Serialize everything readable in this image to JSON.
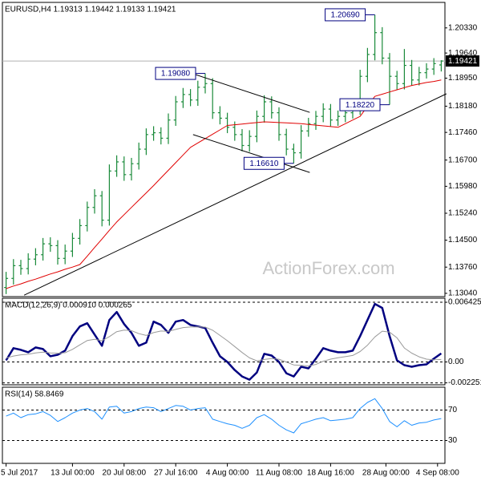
{
  "chart_data": [
    {
      "type": "ohlc",
      "title": "EURUSD,H4  1.19313 1.19442 1.19133 1.19421",
      "watermark": "ActionForex.com",
      "color": "#1a8a3a",
      "xlim": [
        -0.5,
        59.5
      ],
      "xticks": [
        {
          "value": 0,
          "label": "5 Jul 2017"
        },
        {
          "value": 9,
          "label": "13 Jul 00:00"
        },
        {
          "value": 16,
          "label": "20 Jul 08:00"
        },
        {
          "value": 23,
          "label": "27 Jul 16:00"
        },
        {
          "value": 30,
          "label": "4 Aug 00:00"
        },
        {
          "value": 37,
          "label": "11 Aug 08:00"
        },
        {
          "value": 44,
          "label": "18 Aug 16:00"
        },
        {
          "value": 51.5,
          "label": "28 Aug 00:00"
        },
        {
          "value": 58.5,
          "label": "4 Sep 08:00"
        }
      ],
      "ylim": [
        1.1295,
        1.2103
      ],
      "yticks": [
        {
          "value": 1.2033,
          "label": "1.20330"
        },
        {
          "value": 1.1964,
          "label": "1.19640"
        },
        {
          "value": 1.1895,
          "label": "1.18950"
        },
        {
          "value": 1.1818,
          "label": "1.18180"
        },
        {
          "value": 1.1746,
          "label": "1.17460"
        },
        {
          "value": 1.167,
          "label": "1.16700"
        },
        {
          "value": 1.1598,
          "label": "1.15980"
        },
        {
          "value": 1.1524,
          "label": "1.15240"
        },
        {
          "value": 1.145,
          "label": "1.14500"
        },
        {
          "value": 1.1376,
          "label": "1.13760"
        },
        {
          "value": 1.1304,
          "label": "1.13040"
        }
      ],
      "grid": false,
      "open": [
        1.132,
        1.1345,
        1.138,
        1.1372,
        1.1398,
        1.141,
        1.144,
        1.1435,
        1.14,
        1.142,
        1.1455,
        1.149,
        1.154,
        1.1572,
        1.1505,
        1.164,
        1.1665,
        1.163,
        1.166,
        1.17,
        1.174,
        1.1745,
        1.173,
        1.178,
        1.183,
        1.185,
        1.1835,
        1.187,
        1.188,
        1.18,
        1.1785,
        1.176,
        1.174,
        1.171,
        1.1735,
        1.179,
        1.183,
        1.18,
        1.174,
        1.17,
        1.169,
        1.175,
        1.177,
        1.179,
        1.181,
        1.178,
        1.179,
        1.18,
        1.181,
        1.19,
        1.196,
        1.202,
        1.195,
        1.19,
        1.188,
        1.193,
        1.189,
        1.191,
        1.192,
        1.19313
      ],
      "high": [
        1.1363,
        1.1398,
        1.1396,
        1.1414,
        1.1428,
        1.1456,
        1.1458,
        1.145,
        1.1438,
        1.147,
        1.1508,
        1.1556,
        1.159,
        1.1585,
        1.1658,
        1.1683,
        1.168,
        1.1676,
        1.1718,
        1.1757,
        1.1763,
        1.176,
        1.1798,
        1.1846,
        1.1868,
        1.1865,
        1.1888,
        1.1908,
        1.1895,
        1.1818,
        1.18,
        1.1776,
        1.1755,
        1.1752,
        1.1806,
        1.1848,
        1.1845,
        1.1815,
        1.1756,
        1.1715,
        1.1766,
        1.1786,
        1.1805,
        1.1826,
        1.1824,
        1.1806,
        1.1816,
        1.1826,
        1.1918,
        1.1978,
        1.2069,
        1.2035,
        1.1964,
        1.1915,
        1.1975,
        1.1945,
        1.1926,
        1.1936,
        1.195,
        1.19442
      ],
      "low": [
        1.1302,
        1.1328,
        1.1355,
        1.1356,
        1.1381,
        1.1394,
        1.1418,
        1.1383,
        1.1384,
        1.1404,
        1.1438,
        1.1474,
        1.1523,
        1.1488,
        1.149,
        1.1624,
        1.1613,
        1.1614,
        1.1644,
        1.1684,
        1.1723,
        1.1713,
        1.1714,
        1.1764,
        1.1813,
        1.1818,
        1.1819,
        1.1853,
        1.1783,
        1.1768,
        1.1744,
        1.1723,
        1.1694,
        1.1693,
        1.1719,
        1.1773,
        1.1784,
        1.1723,
        1.1683,
        1.1661,
        1.1674,
        1.1734,
        1.1753,
        1.1774,
        1.1763,
        1.1764,
        1.1774,
        1.1784,
        1.1794,
        1.1884,
        1.1944,
        1.1933,
        1.1822,
        1.1863,
        1.1864,
        1.1874,
        1.1875,
        1.1894,
        1.1904,
        1.19133
      ],
      "close": [
        1.1345,
        1.138,
        1.1372,
        1.1398,
        1.141,
        1.144,
        1.1435,
        1.14,
        1.142,
        1.1455,
        1.149,
        1.154,
        1.1572,
        1.1505,
        1.164,
        1.1665,
        1.163,
        1.166,
        1.17,
        1.174,
        1.1745,
        1.173,
        1.178,
        1.183,
        1.185,
        1.1835,
        1.187,
        1.188,
        1.18,
        1.1785,
        1.176,
        1.174,
        1.171,
        1.1735,
        1.179,
        1.183,
        1.18,
        1.174,
        1.17,
        1.169,
        1.175,
        1.177,
        1.179,
        1.181,
        1.178,
        1.179,
        1.18,
        1.181,
        1.19,
        1.196,
        1.202,
        1.195,
        1.19,
        1.188,
        1.193,
        1.189,
        1.191,
        1.192,
        1.1935,
        1.19421
      ],
      "lines": [
        {
          "color": "#e00000",
          "width": 1,
          "values": [
            1.1317,
            1.1324,
            1.133,
            1.1337,
            1.1343,
            1.135,
            1.1357,
            1.1363,
            1.137,
            1.1376,
            1.1383,
            1.1406,
            1.143,
            1.1453,
            1.1477,
            1.15,
            1.152,
            1.154,
            1.156,
            1.158,
            1.16,
            1.1621,
            1.1642,
            1.1663,
            1.1684,
            1.1705,
            1.1717,
            1.1729,
            1.1741,
            1.1753,
            1.1765,
            1.1767,
            1.1769,
            1.1771,
            1.1773,
            1.1775,
            1.1774,
            1.1773,
            1.1772,
            1.1771,
            1.177,
            1.1768,
            1.1766,
            1.1764,
            1.1762,
            1.176,
            1.177,
            1.178,
            1.179,
            1.1818,
            1.1845,
            1.1851,
            1.1857,
            1.1863,
            1.1869,
            1.1875,
            1.1879,
            1.1883,
            1.1886,
            1.189
          ]
        }
      ],
      "trendlines": [
        {
          "x": [
            2.45,
            59.7
          ],
          "y": [
            1.1299,
            1.1852
          ]
        },
        {
          "x": [
            25.35,
            41.17
          ],
          "y": [
            1.1907,
            1.1801
          ]
        },
        {
          "x": [
            25.35,
            41.17
          ],
          "y": [
            1.174,
            1.1636
          ]
        }
      ],
      "annotations": [
        {
          "text": "1.20690",
          "x": 50,
          "y": 1.2069
        },
        {
          "text": "1.19080",
          "x": 27,
          "y": 1.1908
        },
        {
          "text": "1.18220",
          "x": 52,
          "y": 1.1822
        },
        {
          "text": "1.16610",
          "x": 39,
          "y": 1.1661
        }
      ]
    },
    {
      "type": "line",
      "title": "MACD(12,26,9) 0.000910 0.000265",
      "ylim": [
        -0.00246,
        0.00686
      ],
      "yticks": [
        0.006425,
        {
          "value": 0,
          "label": "0.00"
        },
        -0.002251
      ],
      "grid": true,
      "lines": [
        {
          "color": "#000080",
          "width": 2.5,
          "values": [
            0.00017,
            0.00148,
            0.0013,
            0.00104,
            0.00156,
            0.00139,
            0.00061,
            0.00078,
            0.00122,
            0.00278,
            0.00382,
            0.00417,
            0.00295,
            0.00174,
            0.00451,
            0.00538,
            0.00408,
            0.00313,
            0.00174,
            0.00208,
            0.00434,
            0.00399,
            0.00313,
            0.00434,
            0.00451,
            0.00399,
            0.00382,
            0.00365,
            0.00208,
            0.00061,
            0,
            -0.00087,
            -0.00156,
            -0.00191,
            -0.00113,
            0.00087,
            0.00069,
            0,
            -0.00122,
            -0.00156,
            -0.00052,
            -0.00069,
            0.00035,
            0.00148,
            0.00122,
            0.00104,
            0.00104,
            0.00122,
            0.00278,
            0.00451,
            0.00625,
            0.00582,
            0.00278,
            0.00017,
            -0.00035,
            -0.00052,
            -0.00035,
            -0.00026,
            0.00035,
            0.00091
          ]
        },
        {
          "color": "#9a9a9a",
          "width": 1,
          "values": [
            0.00043,
            0.00064,
            0.00077,
            0.00083,
            0.00097,
            0.00106,
            0.00097,
            0.00094,
            0.00099,
            0.00135,
            0.00184,
            0.0023,
            0.00243,
            0.00229,
            0.00273,
            0.00326,
            0.00343,
            0.00337,
            0.00305,
            0.00286,
            0.00316,
            0.00333,
            0.00329,
            0.0035,
            0.0037,
            0.00376,
            0.00377,
            0.00375,
            0.00342,
            0.00286,
            0.00229,
            0.00166,
            0.00102,
            0.00044,
            0.00012,
            0.00027,
            0.00036,
            0.00029,
            -1e-05,
            -0.00032,
            -0.00036,
            -0.00043,
            -0.00027,
            8e-05,
            0.0003,
            0.00045,
            0.00057,
            0.0007,
            0.00112,
            0.0018,
            0.00269,
            0.00331,
            0.00321,
            0.0026,
            0.0015,
            0.00095,
            0.00055,
            0.0003,
            0.00022,
            0.000265
          ]
        }
      ]
    },
    {
      "type": "line",
      "title": "RSI(14) 58.8469",
      "ylim": [
        0,
        100
      ],
      "yticks": [
        70,
        30
      ],
      "grid": true,
      "lines": [
        {
          "color": "#1e90ff",
          "width": 1,
          "values": [
            62,
            66,
            60,
            64,
            65,
            68,
            63,
            55,
            60,
            66,
            70,
            72,
            68,
            58,
            74,
            75,
            66,
            68,
            72,
            74,
            73,
            68,
            72,
            76,
            75,
            70,
            72,
            73,
            58,
            55,
            52,
            50,
            46,
            50,
            60,
            64,
            58,
            50,
            44,
            40,
            52,
            55,
            58,
            60,
            56,
            57,
            58,
            60,
            72,
            80,
            85,
            72,
            55,
            48,
            56,
            50,
            53,
            54,
            57,
            58.8469
          ]
        }
      ]
    }
  ]
}
